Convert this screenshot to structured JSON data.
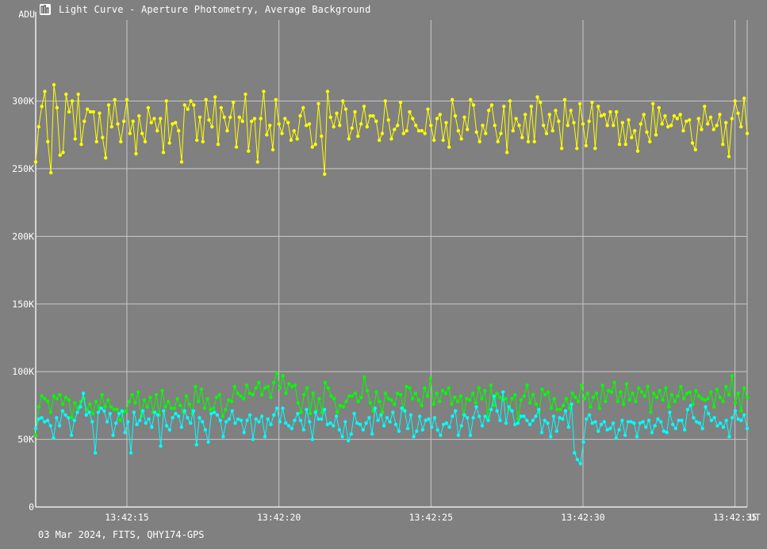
{
  "window": {
    "title": "Light Curve - Aperture Photometry, Average Background",
    "footer": "03 Mar 2024, FITS, QHY174-GPS"
  },
  "chart_data": {
    "type": "line",
    "title": "Light Curve - Aperture Photometry, Average Background",
    "ylabel": "ADU",
    "xlabel": "UT",
    "ylim": [
      0,
      360000
    ],
    "xlim": [
      "13:42:12.0",
      "13:42:35.4"
    ],
    "y_ticks": [
      0,
      50000,
      100000,
      150000,
      200000,
      250000,
      300000
    ],
    "y_tick_labels": [
      "0",
      "50K",
      "100K",
      "150K",
      "200K",
      "250K",
      "300K"
    ],
    "x_ticks": [
      "13:42:15",
      "13:42:20",
      "13:42:25",
      "13:42:30",
      "13:42:35"
    ],
    "x_tick_labels": [
      "13:42:15",
      "13:42:20",
      "13:42:25",
      "13:42:30",
      "13:42:35"
    ],
    "grid": true,
    "frame_count": 235,
    "frame_interval_s": 0.1,
    "series": [
      {
        "color": "#ffff00",
        "values": [
          255000,
          281000,
          296000,
          307000,
          270000,
          247000,
          312000,
          295000,
          260000,
          262000,
          305000,
          292000,
          300000,
          272000,
          305000,
          268000,
          285000,
          294000,
          292000,
          292000,
          270000,
          291000,
          273000,
          258000,
          297000,
          281000,
          301000,
          283000,
          270000,
          285000,
          301000,
          276000,
          285000,
          261000,
          289000,
          276000,
          270000,
          295000,
          284000,
          287000,
          278000,
          287000,
          262000,
          300000,
          269000,
          283000,
          284000,
          278000,
          255000,
          297000,
          294000,
          300000,
          297000,
          271000,
          288000,
          270000,
          301000,
          286000,
          281000,
          303000,
          268000,
          295000,
          288000,
          278000,
          288000,
          299000,
          266000,
          288000,
          285000,
          305000,
          263000,
          285000,
          287000,
          255000,
          287000,
          307000,
          275000,
          282000,
          264000,
          301000,
          283000,
          276000,
          287000,
          284000,
          271000,
          278000,
          272000,
          289000,
          295000,
          282000,
          283000,
          266000,
          268000,
          298000,
          274000,
          246000,
          307000,
          288000,
          281000,
          291000,
          282000,
          300000,
          294000,
          272000,
          280000,
          292000,
          274000,
          283000,
          296000,
          281000,
          289000,
          289000,
          285000,
          271000,
          276000,
          300000,
          286000,
          272000,
          279000,
          282000,
          299000,
          276000,
          278000,
          292000,
          287000,
          282000,
          278000,
          278000,
          276000,
          294000,
          282000,
          271000,
          287000,
          290000,
          271000,
          284000,
          266000,
          301000,
          289000,
          278000,
          272000,
          288000,
          279000,
          301000,
          297000,
          277000,
          270000,
          282000,
          276000,
          293000,
          297000,
          282000,
          270000,
          276000,
          296000,
          262000,
          300000,
          278000,
          287000,
          282000,
          273000,
          290000,
          270000,
          296000,
          270000,
          303000,
          299000,
          282000,
          276000,
          290000,
          278000,
          293000,
          285000,
          265000,
          301000,
          282000,
          293000,
          284000,
          265000,
          298000,
          283000,
          267000,
          285000,
          299000,
          265000,
          296000,
          289000,
          290000,
          282000,
          292000,
          282000,
          292000,
          268000,
          284000,
          268000,
          286000,
          273000,
          278000,
          263000,
          283000,
          290000,
          277000,
          270000,
          298000,
          275000,
          295000,
          283000,
          289000,
          281000,
          282000,
          289000,
          287000,
          290000,
          278000,
          285000,
          286000,
          269000,
          264000,
          287000,
          279000,
          296000,
          283000,
          288000,
          279000,
          282000,
          290000,
          268000,
          284000,
          259000,
          287000,
          300000,
          291000,
          281000,
          302000,
          276000
        ],
        "name": ""
      },
      {
        "color": "#00ff00",
        "values": [
          53000,
          74000,
          82000,
          80000,
          78000,
          70000,
          82000,
          80000,
          83000,
          76000,
          81000,
          79000,
          66000,
          77000,
          73000,
          78000,
          80000,
          72000,
          76000,
          69000,
          78000,
          73000,
          83000,
          74000,
          79000,
          74000,
          72000,
          72000,
          64000,
          70000,
          71000,
          78000,
          83000,
          77000,
          85000,
          67000,
          79000,
          74000,
          81000,
          70000,
          83000,
          68000,
          86000,
          74000,
          78000,
          73000,
          73000,
          80000,
          75000,
          70000,
          82000,
          76000,
          69000,
          89000,
          78000,
          87000,
          73000,
          80000,
          72000,
          73000,
          81000,
          83000,
          67000,
          72000,
          79000,
          78000,
          89000,
          84000,
          82000,
          80000,
          90000,
          84000,
          83000,
          88000,
          92000,
          83000,
          88000,
          89000,
          81000,
          92000,
          99000,
          88000,
          97000,
          84000,
          91000,
          89000,
          90000,
          77000,
          70000,
          83000,
          88000,
          69000,
          84000,
          71000,
          80000,
          70000,
          92000,
          88000,
          82000,
          80000,
          70000,
          75000,
          74000,
          78000,
          82000,
          82000,
          84000,
          78000,
          81000,
          96000,
          86000,
          77000,
          71000,
          85000,
          78000,
          70000,
          84000,
          80000,
          79000,
          76000,
          84000,
          83000,
          72000,
          89000,
          88000,
          80000,
          84000,
          79000,
          75000,
          88000,
          82000,
          95000,
          76000,
          84000,
          78000,
          86000,
          84000,
          88000,
          76000,
          81000,
          78000,
          82000,
          68000,
          80000,
          79000,
          84000,
          77000,
          88000,
          80000,
          86000,
          66000,
          90000,
          75000,
          84000,
          81000,
          79000,
          80000,
          72000,
          80000,
          83000,
          65000,
          79000,
          82000,
          90000,
          77000,
          83000,
          76000,
          70000,
          87000,
          83000,
          85000,
          73000,
          80000,
          72000,
          72000,
          75000,
          80000,
          73000,
          84000,
          81000,
          78000,
          90000,
          80000,
          84000,
          74000,
          81000,
          84000,
          73000,
          90000,
          78000,
          86000,
          85000,
          92000,
          78000,
          85000,
          76000,
          91000,
          79000,
          84000,
          78000,
          88000,
          85000,
          82000,
          89000,
          70000,
          84000,
          81000,
          86000,
          79000,
          88000,
          74000,
          83000,
          78000,
          82000,
          89000,
          80000,
          84000,
          85000,
          76000,
          86000,
          82000,
          80000,
          79000,
          80000,
          85000,
          74000,
          87000,
          81000,
          78000,
          89000,
          83000,
          97000,
          77000,
          84000,
          71000,
          88000,
          81000
        ],
        "name": ""
      },
      {
        "color": "#00ffff",
        "values": [
          58000,
          65000,
          66000,
          63000,
          64000,
          60000,
          51000,
          66000,
          60000,
          71000,
          68000,
          66000,
          53000,
          64000,
          70000,
          74000,
          84000,
          68000,
          70000,
          63000,
          40000,
          70000,
          73000,
          71000,
          63000,
          69000,
          53000,
          62000,
          69000,
          71000,
          55000,
          63000,
          40000,
          70000,
          61000,
          64000,
          71000,
          62000,
          65000,
          59000,
          70000,
          68000,
          45000,
          71000,
          60000,
          57000,
          66000,
          69000,
          67000,
          59000,
          71000,
          66000,
          62000,
          71000,
          46000,
          66000,
          63000,
          57000,
          48000,
          69000,
          70000,
          68000,
          64000,
          52000,
          63000,
          65000,
          71000,
          62000,
          65000,
          64000,
          55000,
          64000,
          68000,
          50000,
          65000,
          63000,
          67000,
          52000,
          65000,
          61000,
          68000,
          73000,
          63000,
          73000,
          62000,
          60000,
          58000,
          64000,
          69000,
          64000,
          57000,
          72000,
          63000,
          50000,
          70000,
          65000,
          65000,
          72000,
          61000,
          62000,
          60000,
          67000,
          57000,
          52000,
          63000,
          49000,
          54000,
          69000,
          62000,
          61000,
          57000,
          62000,
          66000,
          54000,
          73000,
          64000,
          68000,
          60000,
          66000,
          63000,
          70000,
          61000,
          56000,
          73000,
          71000,
          58000,
          68000,
          52000,
          56000,
          67000,
          57000,
          64000,
          65000,
          59000,
          66000,
          57000,
          53000,
          61000,
          62000,
          59000,
          67000,
          71000,
          53000,
          60000,
          68000,
          66000,
          53000,
          66000,
          74000,
          67000,
          60000,
          67000,
          64000,
          72000,
          82000,
          71000,
          64000,
          85000,
          62000,
          74000,
          71000,
          61000,
          62000,
          67000,
          67000,
          64000,
          61000,
          64000,
          67000,
          72000,
          55000,
          64000,
          62000,
          52000,
          67000,
          56000,
          66000,
          65000,
          71000,
          59000,
          76000,
          40000,
          35000,
          32000,
          48000,
          65000,
          68000,
          62000,
          63000,
          56000,
          61000,
          63000,
          57000,
          58000,
          62000,
          51000,
          57000,
          64000,
          53000,
          63000,
          63000,
          62000,
          52000,
          62000,
          63000,
          59000,
          64000,
          55000,
          60000,
          65000,
          63000,
          56000,
          55000,
          70000,
          61000,
          58000,
          64000,
          64000,
          57000,
          72000,
          75000,
          66000,
          63000,
          62000,
          58000,
          74000,
          69000,
          64000,
          66000,
          60000,
          62000,
          59000,
          64000,
          52000,
          66000,
          71000,
          65000,
          64000,
          68000,
          58000
        ],
        "name": ""
      }
    ]
  }
}
